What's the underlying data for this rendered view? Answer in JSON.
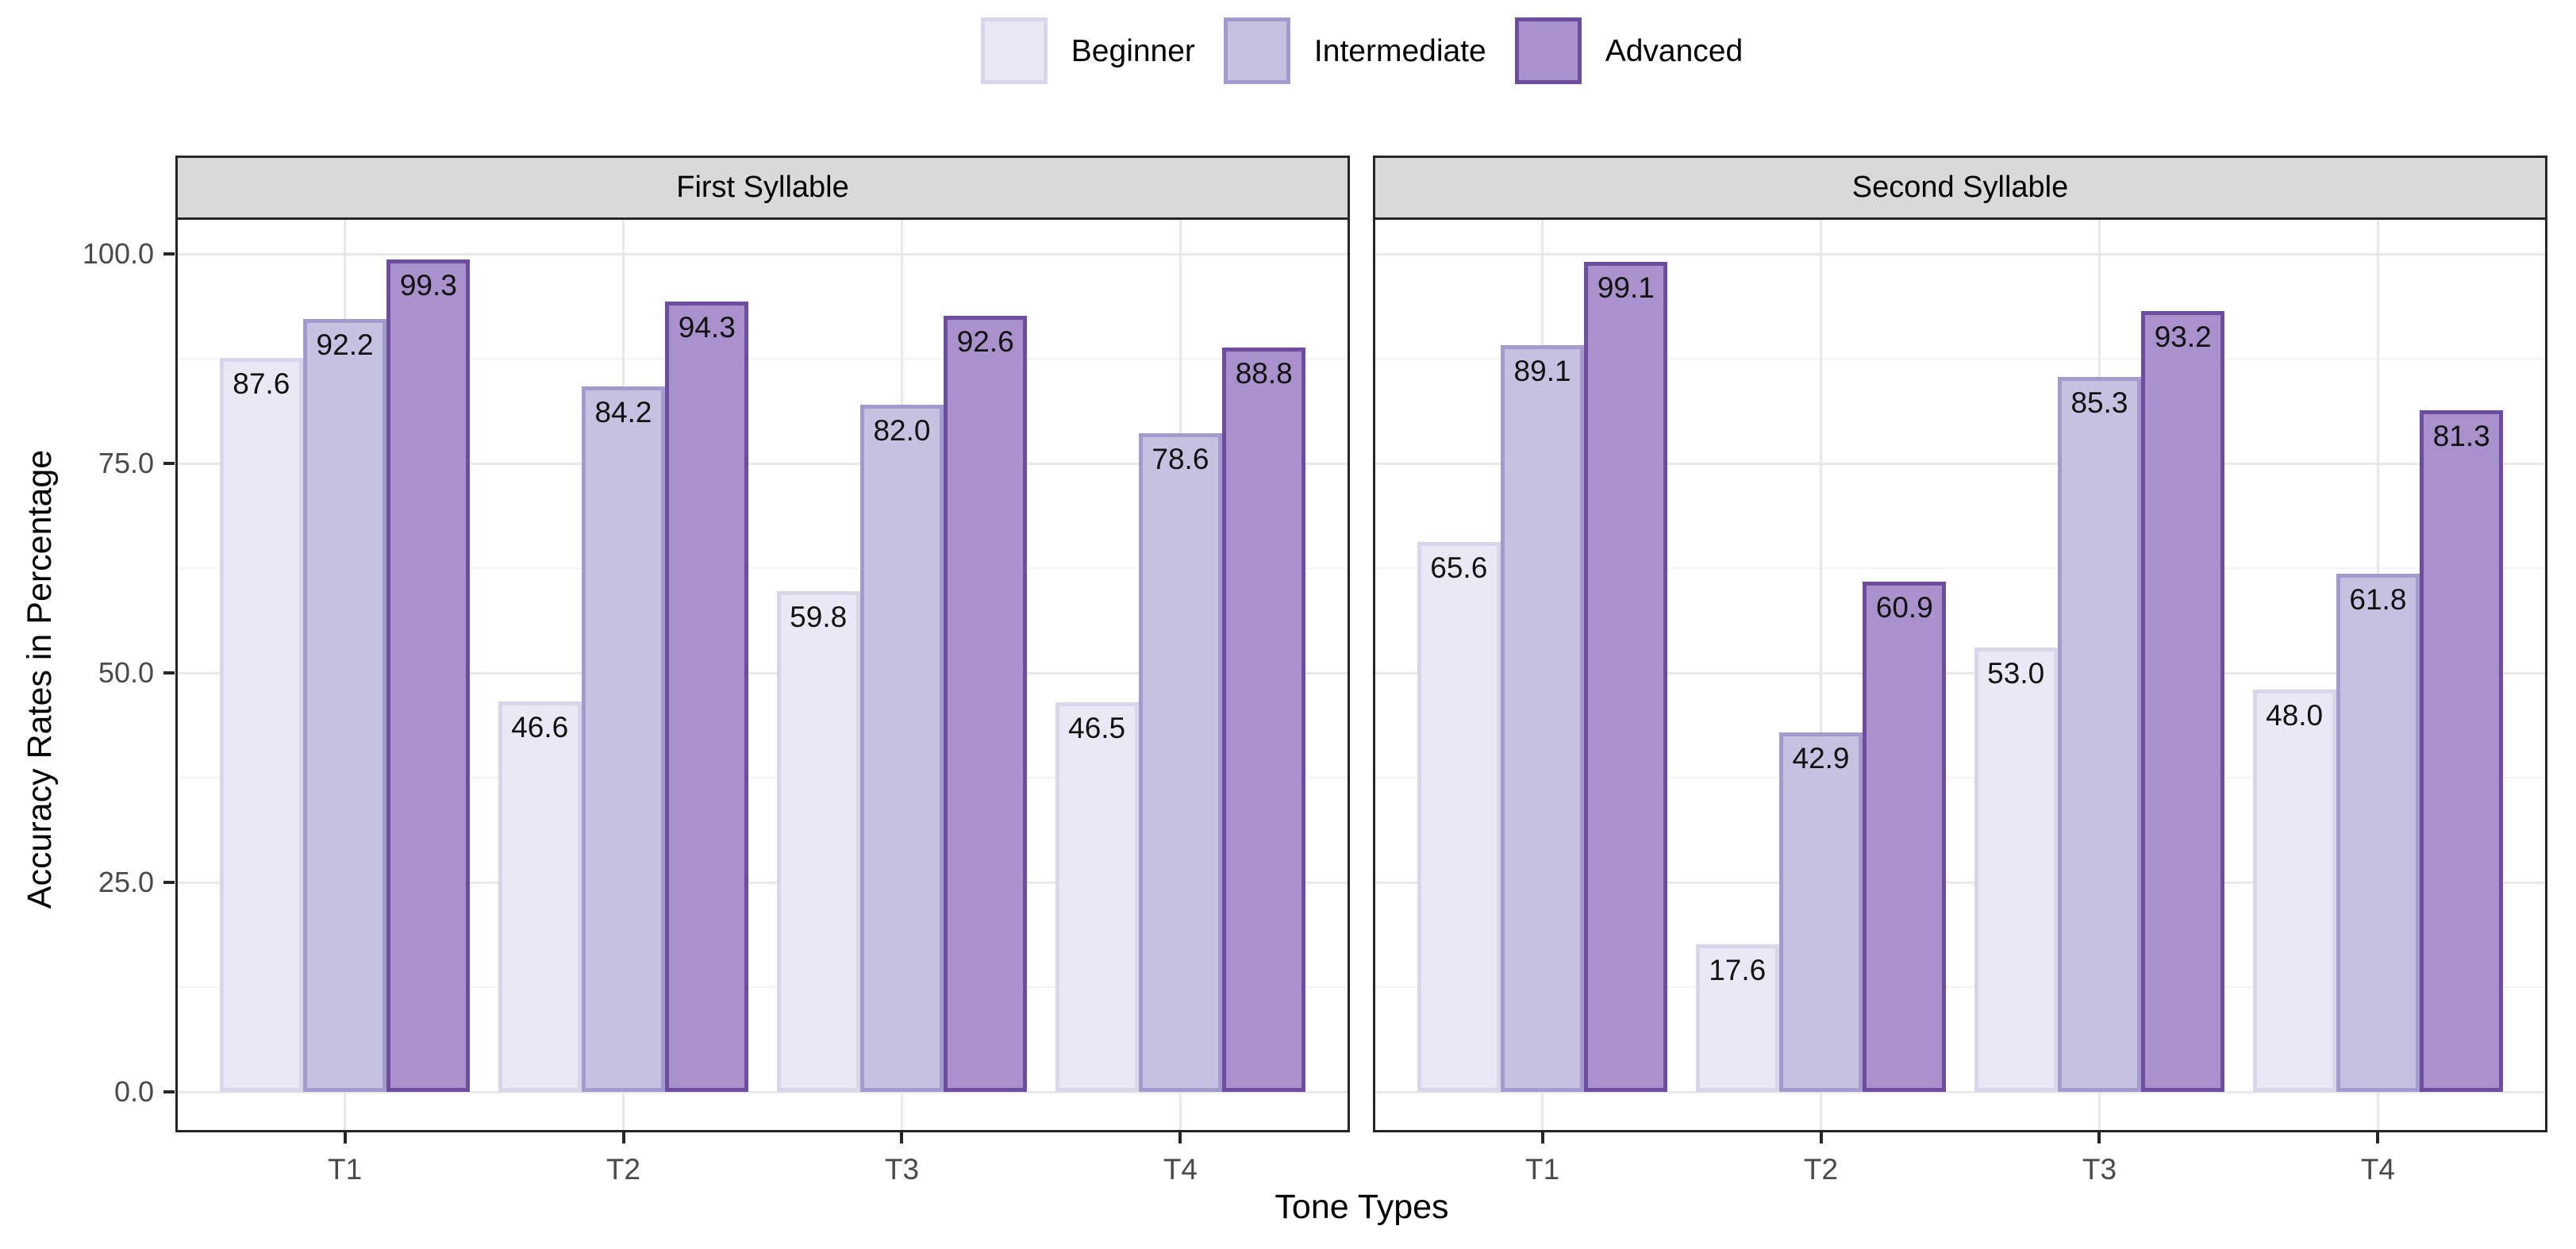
{
  "chart_data": {
    "type": "bar",
    "title": "",
    "xlabel": "Tone Types",
    "ylabel": "Accuracy Rates in Percentage",
    "ylim": [
      0,
      100
    ],
    "yticks": [
      {
        "value": 0,
        "label": "0.0"
      },
      {
        "value": 25,
        "label": "25.0"
      },
      {
        "value": 50,
        "label": "50.0"
      },
      {
        "value": 75,
        "label": "75.0"
      },
      {
        "value": 100,
        "label": "100.0"
      }
    ],
    "minor_gridlines": [
      12.5,
      37.5,
      62.5,
      87.5
    ],
    "grid": "major and minor horizontal, major vertical at category centers",
    "legend_position": "top",
    "categories": [
      "T1",
      "T2",
      "T3",
      "T4"
    ],
    "series_names": [
      "Beginner",
      "Intermediate",
      "Advanced"
    ],
    "facets": [
      {
        "label": "First Syllable",
        "series": [
          {
            "name": "Beginner",
            "values": [
              87.6,
              46.6,
              59.8,
              46.5
            ]
          },
          {
            "name": "Intermediate",
            "values": [
              92.2,
              84.2,
              82.0,
              78.6
            ]
          },
          {
            "name": "Advanced",
            "values": [
              99.3,
              94.3,
              92.6,
              88.8
            ]
          }
        ]
      },
      {
        "label": "Second Syllable",
        "series": [
          {
            "name": "Beginner",
            "values": [
              65.6,
              17.6,
              53.0,
              48.0
            ]
          },
          {
            "name": "Intermediate",
            "values": [
              89.1,
              42.9,
              85.3,
              61.8
            ]
          },
          {
            "name": "Advanced",
            "values": [
              99.1,
              60.9,
              93.2,
              81.3
            ]
          }
        ]
      }
    ],
    "series_styles": [
      {
        "name": "Beginner",
        "fill": "#E9E8F4",
        "stroke": "#D9D6EA"
      },
      {
        "name": "Intermediate",
        "fill": "#C6C1E0",
        "stroke": "#A29BCE"
      },
      {
        "name": "Advanced",
        "fill": "#A991CC",
        "stroke": "#6C4DA0"
      }
    ],
    "colors": {
      "strip_bg": "#D9D9D9",
      "panel_border": "#262626",
      "grid_major": "#E8E8E8",
      "grid_minor": "#F3F3F3",
      "axis_text": "#4A4A4A",
      "title_text": "#000000",
      "bar_label_text": "#111111"
    }
  }
}
